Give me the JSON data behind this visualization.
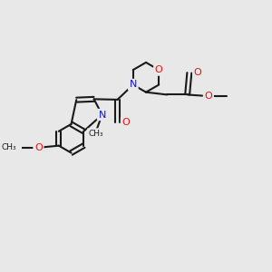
{
  "background_color": "#e8e8e8",
  "bond_color": "#1a1a1a",
  "N_color": "#1010ee",
  "O_color": "#ee1010",
  "font_size": 8,
  "line_width": 1.5,
  "figsize": [
    3.0,
    3.0
  ],
  "dpi": 100,
  "xlim": [
    -4.5,
    5.5
  ],
  "ylim": [
    -3.5,
    3.5
  ]
}
